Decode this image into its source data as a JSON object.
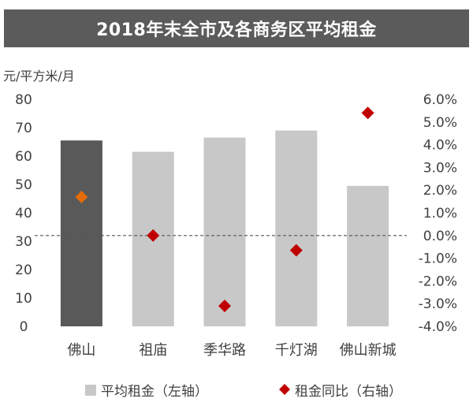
{
  "chart_data": {
    "type": "bar",
    "title": "2018年末全市及各商务区平均租金",
    "ylabel": "元/平方米/月",
    "categories": [
      "佛山",
      "祖庙",
      "季华路",
      "千灯湖",
      "佛山新城"
    ],
    "ylim": [
      0,
      80
    ],
    "yticks": [
      "0",
      "10",
      "20",
      "30",
      "40",
      "50",
      "60",
      "70",
      "80"
    ],
    "y2lim": [
      -4.0,
      6.0
    ],
    "y2ticks": [
      "-4.0%",
      "-3.0%",
      "-2.0%",
      "-1.0%",
      "0.0%",
      "1.0%",
      "2.0%",
      "3.0%",
      "4.0%",
      "5.0%",
      "6.0%"
    ],
    "series": [
      {
        "name": "平均租金（左轴）",
        "type": "bar",
        "axis": "left",
        "values": [
          65.5,
          61.5,
          66.5,
          69,
          49.5
        ]
      },
      {
        "name": "租金同比（右轴）",
        "type": "scatter",
        "axis": "right",
        "values": [
          1.7,
          0.0,
          -3.1,
          -0.65,
          5.4
        ]
      }
    ],
    "reference_line": {
      "axis": "right",
      "value": 0.0,
      "style": "dashed"
    },
    "legend_position": "bottom",
    "colors": {
      "bar_highlight": "#595959",
      "bar": "#c8c8c8",
      "marker_highlight": "#e46c0a",
      "marker": "#c00000",
      "title_bg": "#5b5b5b",
      "text": "#404040"
    }
  }
}
